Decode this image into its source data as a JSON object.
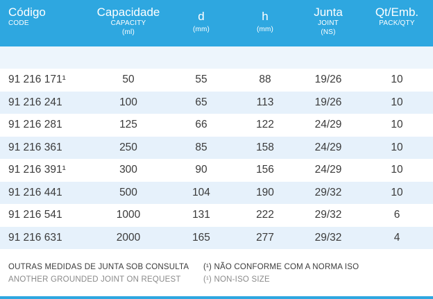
{
  "colors": {
    "accent": "#2ea7e0",
    "row_alt": "#e6f1fb",
    "text": "#3a3a3a",
    "muted": "#8a8a8a"
  },
  "header": {
    "code": {
      "main": "Código",
      "sub": "CODE"
    },
    "capacity": {
      "main": "Capacidade",
      "sub1": "CAPACITY",
      "sub2": "(ml)"
    },
    "d": {
      "main": "d",
      "sub": "(mm)"
    },
    "h": {
      "main": "h",
      "sub": "(mm)"
    },
    "joint": {
      "main": "Junta",
      "sub1": "JOINT",
      "sub2": "(NS)"
    },
    "pack": {
      "main": "Qt/Emb.",
      "sub": "PACK/QTY"
    }
  },
  "rows": [
    {
      "code": "91 216 171¹",
      "capacity": "50",
      "d": "55",
      "h": "88",
      "joint": "19/26",
      "pack": "10"
    },
    {
      "code": "91 216 241",
      "capacity": "100",
      "d": "65",
      "h": "113",
      "joint": "19/26",
      "pack": "10"
    },
    {
      "code": "91 216 281",
      "capacity": "125",
      "d": "66",
      "h": "122",
      "joint": "24/29",
      "pack": "10"
    },
    {
      "code": "91 216 361",
      "capacity": "250",
      "d": "85",
      "h": "158",
      "joint": "24/29",
      "pack": "10"
    },
    {
      "code": "91 216 391¹",
      "capacity": "300",
      "d": "90",
      "h": "156",
      "joint": "24/29",
      "pack": "10"
    },
    {
      "code": "91 216 441",
      "capacity": "500",
      "d": "104",
      "h": "190",
      "joint": "29/32",
      "pack": "10"
    },
    {
      "code": "91 216 541",
      "capacity": "1000",
      "d": "131",
      "h": "222",
      "joint": "29/32",
      "pack": "6"
    },
    {
      "code": "91 216 631",
      "capacity": "2000",
      "d": "165",
      "h": "277",
      "joint": "29/32",
      "pack": "4"
    }
  ],
  "footer": {
    "left_pt": "OUTRAS MEDIDAS DE JUNTA SOB CONSULTA",
    "left_en": "ANOTHER GROUNDED JOINT ON REQUEST",
    "right_pt": "(¹) NÃO CONFORME COM A NORMA ISO",
    "right_en": "(¹) NON-ISO SIZE"
  }
}
